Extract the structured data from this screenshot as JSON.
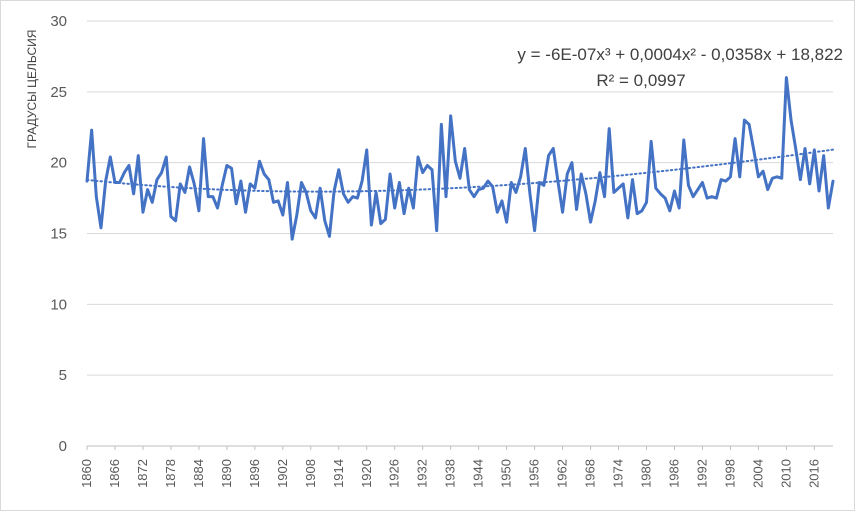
{
  "chart_data": {
    "type": "line",
    "title": "",
    "xlabel": "",
    "ylabel": "ГРАДУСЫ ЦЕЛЬСИЯ",
    "ylim": [
      0,
      30
    ],
    "yticks": [
      0,
      5,
      10,
      15,
      20,
      25,
      30
    ],
    "xlim": [
      1860,
      2020
    ],
    "xticks": [
      1860,
      1866,
      1872,
      1878,
      1884,
      1890,
      1896,
      1902,
      1908,
      1914,
      1920,
      1926,
      1932,
      1938,
      1944,
      1950,
      1956,
      1962,
      1968,
      1974,
      1980,
      1986,
      1992,
      1998,
      2004,
      2010,
      2016
    ],
    "grid": true,
    "legend": "none",
    "colors": {
      "series": "#4472C4",
      "grid": "#d9d9d9",
      "axis": "#bfbfbf",
      "text": "#595959"
    },
    "trendline": {
      "type": "polynomial",
      "order": 3,
      "style": "dotted",
      "equation": "y = -6E-07x³ + 0,0004x² - 0,0358x + 18,822",
      "r_squared": "R² = 0,0997",
      "coefficients": [
        -6e-07,
        0.0004,
        -0.0358,
        18.822
      ]
    },
    "x": [
      1860,
      1861,
      1862,
      1863,
      1864,
      1865,
      1866,
      1867,
      1868,
      1869,
      1870,
      1871,
      1872,
      1873,
      1874,
      1875,
      1876,
      1877,
      1878,
      1879,
      1880,
      1881,
      1882,
      1883,
      1884,
      1885,
      1886,
      1887,
      1888,
      1889,
      1890,
      1891,
      1892,
      1893,
      1894,
      1895,
      1896,
      1897,
      1898,
      1899,
      1900,
      1901,
      1902,
      1903,
      1904,
      1905,
      1906,
      1907,
      1908,
      1909,
      1910,
      1911,
      1912,
      1913,
      1914,
      1915,
      1916,
      1917,
      1918,
      1919,
      1920,
      1921,
      1922,
      1923,
      1924,
      1925,
      1926,
      1927,
      1928,
      1929,
      1930,
      1931,
      1932,
      1933,
      1934,
      1935,
      1936,
      1937,
      1938,
      1939,
      1940,
      1941,
      1942,
      1943,
      1944,
      1945,
      1946,
      1947,
      1948,
      1949,
      1950,
      1951,
      1952,
      1953,
      1954,
      1955,
      1956,
      1957,
      1958,
      1959,
      1960,
      1961,
      1962,
      1963,
      1964,
      1965,
      1966,
      1967,
      1968,
      1969,
      1970,
      1971,
      1972,
      1973,
      1974,
      1975,
      1976,
      1977,
      1978,
      1979,
      1980,
      1981,
      1982,
      1983,
      1984,
      1985,
      1986,
      1987,
      1988,
      1989,
      1990,
      1991,
      1992,
      1993,
      1994,
      1995,
      1996,
      1997,
      1998,
      1999,
      2000,
      2001,
      2002,
      2003,
      2004,
      2005,
      2006,
      2007,
      2008,
      2009,
      2010,
      2011,
      2012,
      2013,
      2014,
      2015,
      2016,
      2017,
      2018,
      2019,
      2020
    ],
    "series": [
      {
        "values": [
          18.7,
          22.3,
          17.6,
          15.4,
          18.7,
          20.4,
          18.6,
          18.6,
          19.3,
          19.8,
          17.8,
          20.5,
          16.5,
          18.1,
          17.2,
          18.8,
          19.3,
          20.4,
          16.2,
          15.9,
          18.5,
          17.9,
          19.7,
          18.5,
          16.6,
          21.7,
          17.6,
          17.6,
          16.8,
          18.4,
          19.8,
          19.6,
          17.1,
          18.7,
          16.5,
          18.5,
          18.2,
          20.1,
          19.2,
          18.8,
          17.2,
          17.3,
          16.3,
          18.6,
          14.6,
          16.3,
          18.6,
          17.9,
          16.6,
          16.1,
          18.2,
          15.9,
          14.8,
          18.0,
          19.5,
          17.8,
          17.2,
          17.6,
          17.5,
          18.7,
          20.9,
          15.6,
          17.9,
          15.7,
          16.0,
          19.2,
          16.8,
          18.6,
          16.4,
          18.2,
          16.8,
          20.4,
          19.3,
          19.8,
          19.5,
          15.2,
          22.7,
          17.6,
          23.3,
          20.1,
          18.9,
          21.0,
          18.1,
          17.6,
          18.1,
          18.2,
          18.7,
          18.3,
          16.5,
          17.3,
          15.8,
          18.6,
          17.9,
          19.0,
          21.0,
          17.8,
          15.2,
          18.6,
          18.4,
          20.5,
          21.0,
          18.7,
          16.5,
          19.2,
          20.0,
          16.7,
          19.2,
          17.8,
          15.8,
          17.3,
          19.3,
          17.6,
          22.4,
          17.9,
          18.2,
          18.5,
          16.1,
          18.8,
          16.4,
          16.6,
          17.2,
          21.5,
          18.2,
          17.8,
          17.5,
          16.6,
          18.0,
          16.8,
          21.6,
          18.4,
          17.6,
          18.1,
          18.6,
          17.5,
          17.6,
          17.5,
          18.8,
          18.7,
          19.0,
          21.7,
          19.0,
          23.0,
          22.7,
          20.9,
          19.0,
          19.4,
          18.1,
          18.9,
          19.0,
          18.9,
          26.0,
          23.0,
          21.0,
          18.8,
          21.0,
          18.5,
          20.9,
          18.0,
          20.5,
          16.8,
          18.7
        ]
      }
    ]
  }
}
